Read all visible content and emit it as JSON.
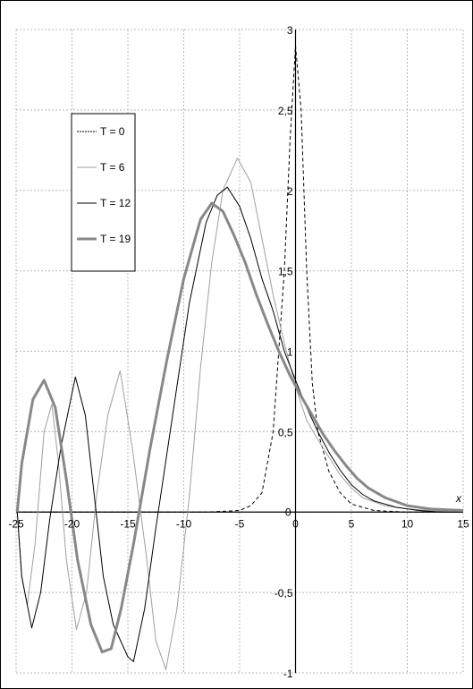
{
  "chart_data": {
    "type": "line",
    "title": "",
    "xlabel": "x",
    "ylabel": "",
    "xlim": [
      -25,
      15
    ],
    "ylim": [
      -1,
      3
    ],
    "x_ticks": [
      "-25",
      "-20",
      "-15",
      "-10",
      "-5",
      "0",
      "5",
      "10",
      "15"
    ],
    "y_ticks": [
      "-1",
      "-0,5",
      "0",
      "0,5",
      "1",
      "1,5",
      "2",
      "2,5",
      "3"
    ],
    "grid": true,
    "legend": {
      "placement": "top-left",
      "entries": [
        {
          "label": "T = 0",
          "style": "dotted",
          "color": "#000000"
        },
        {
          "label": "T = 6",
          "style": "solid-thin-light",
          "color": "#999999"
        },
        {
          "label": "T = 12",
          "style": "solid",
          "color": "#000000"
        },
        {
          "label": "T = 19",
          "style": "solid-thick",
          "color": "#888888"
        }
      ]
    },
    "series": [
      {
        "name": "T = 0",
        "color": "#000000",
        "dash": "4,3",
        "width": 1,
        "points": [
          [
            -25,
            0
          ],
          [
            -15,
            0
          ],
          [
            -8,
            0
          ],
          [
            -5,
            0.01
          ],
          [
            -4,
            0.04
          ],
          [
            -3,
            0.12
          ],
          [
            -2,
            0.5
          ],
          [
            -1,
            1.5
          ],
          [
            -0.5,
            2.3
          ],
          [
            0,
            2.9
          ],
          [
            0.5,
            2.5
          ],
          [
            1,
            1.5
          ],
          [
            1.5,
            0.8
          ],
          [
            2,
            0.5
          ],
          [
            3,
            0.25
          ],
          [
            4,
            0.12
          ],
          [
            5,
            0.05
          ],
          [
            7,
            0.01
          ],
          [
            10,
            0
          ],
          [
            15,
            0
          ]
        ]
      },
      {
        "name": "T = 6",
        "color": "#a0a0a0",
        "dash": "",
        "width": 1,
        "points": [
          [
            -24.9,
            0
          ],
          [
            -24.5,
            -0.4
          ],
          [
            -24,
            -0.58
          ],
          [
            -23.3,
            -0.2
          ],
          [
            -22.5,
            0.5
          ],
          [
            -21.8,
            0.67
          ],
          [
            -21.2,
            0.3
          ],
          [
            -20.5,
            -0.3
          ],
          [
            -19.6,
            -0.73
          ],
          [
            -18.7,
            -0.5
          ],
          [
            -17.8,
            0.1
          ],
          [
            -16.8,
            0.6
          ],
          [
            -15.7,
            0.88
          ],
          [
            -14.6,
            0.4
          ],
          [
            -13.3,
            -0.3
          ],
          [
            -12.5,
            -0.8
          ],
          [
            -11.6,
            -0.98
          ],
          [
            -10.6,
            -0.6
          ],
          [
            -9.5,
            0.1
          ],
          [
            -8.5,
            0.9
          ],
          [
            -7.5,
            1.55
          ],
          [
            -6.5,
            2.0
          ],
          [
            -5.2,
            2.2
          ],
          [
            -4,
            2.05
          ],
          [
            -3,
            1.7
          ],
          [
            -2,
            1.35
          ],
          [
            -1,
            1.05
          ],
          [
            0,
            0.78
          ],
          [
            1,
            0.57
          ],
          [
            2,
            0.45
          ],
          [
            3,
            0.34
          ],
          [
            4,
            0.23
          ],
          [
            5,
            0.15
          ],
          [
            6,
            0.09
          ],
          [
            8,
            0.04
          ],
          [
            10,
            0.02
          ],
          [
            12,
            0.01
          ],
          [
            15,
            0
          ]
        ]
      },
      {
        "name": "T = 12",
        "color": "#000000",
        "dash": "",
        "width": 1,
        "points": [
          [
            -24.9,
            0
          ],
          [
            -24.5,
            -0.4
          ],
          [
            -23.6,
            -0.72
          ],
          [
            -22.8,
            -0.5
          ],
          [
            -22,
            -0.05
          ],
          [
            -21,
            0.4
          ],
          [
            -19.7,
            0.84
          ],
          [
            -18.8,
            0.6
          ],
          [
            -18,
            0.1
          ],
          [
            -17.2,
            -0.4
          ],
          [
            -16.3,
            -0.7
          ],
          [
            -15,
            -0.9
          ],
          [
            -14.5,
            -0.93
          ],
          [
            -13.5,
            -0.6
          ],
          [
            -12.5,
            -0.1
          ],
          [
            -11,
            0.6
          ],
          [
            -9.5,
            1.3
          ],
          [
            -8,
            1.8
          ],
          [
            -7,
            1.97
          ],
          [
            -6.1,
            2.02
          ],
          [
            -5,
            1.9
          ],
          [
            -4,
            1.7
          ],
          [
            -3,
            1.45
          ],
          [
            -2,
            1.25
          ],
          [
            -1,
            1.0
          ],
          [
            0,
            0.82
          ],
          [
            1,
            0.65
          ],
          [
            2,
            0.5
          ],
          [
            3,
            0.37
          ],
          [
            4,
            0.26
          ],
          [
            5,
            0.17
          ],
          [
            6,
            0.11
          ],
          [
            7,
            0.07
          ],
          [
            9,
            0.03
          ],
          [
            11,
            0.01
          ],
          [
            13,
            0
          ],
          [
            15,
            0
          ]
        ]
      },
      {
        "name": "T = 19",
        "color": "#888888",
        "dash": "",
        "width": 3,
        "points": [
          [
            -24.9,
            0
          ],
          [
            -24.5,
            0.3
          ],
          [
            -23.5,
            0.7
          ],
          [
            -22.5,
            0.82
          ],
          [
            -21.5,
            0.65
          ],
          [
            -20.5,
            0.2
          ],
          [
            -19.5,
            -0.3
          ],
          [
            -18.3,
            -0.7
          ],
          [
            -17.3,
            -0.87
          ],
          [
            -16.5,
            -0.85
          ],
          [
            -15.6,
            -0.6
          ],
          [
            -14.5,
            -0.2
          ],
          [
            -13,
            0.4
          ],
          [
            -11.5,
            0.95
          ],
          [
            -10,
            1.45
          ],
          [
            -8.5,
            1.82
          ],
          [
            -7.5,
            1.92
          ],
          [
            -6.5,
            1.87
          ],
          [
            -5.5,
            1.72
          ],
          [
            -4.5,
            1.55
          ],
          [
            -3.5,
            1.35
          ],
          [
            -2.5,
            1.17
          ],
          [
            -1.5,
            1.0
          ],
          [
            -0.5,
            0.85
          ],
          [
            0.5,
            0.72
          ],
          [
            1.5,
            0.6
          ],
          [
            2.5,
            0.48
          ],
          [
            3.5,
            0.38
          ],
          [
            4.5,
            0.29
          ],
          [
            5.5,
            0.21
          ],
          [
            6.5,
            0.15
          ],
          [
            8,
            0.09
          ],
          [
            10,
            0.04
          ],
          [
            12,
            0.02
          ],
          [
            15,
            0.01
          ]
        ]
      }
    ]
  }
}
